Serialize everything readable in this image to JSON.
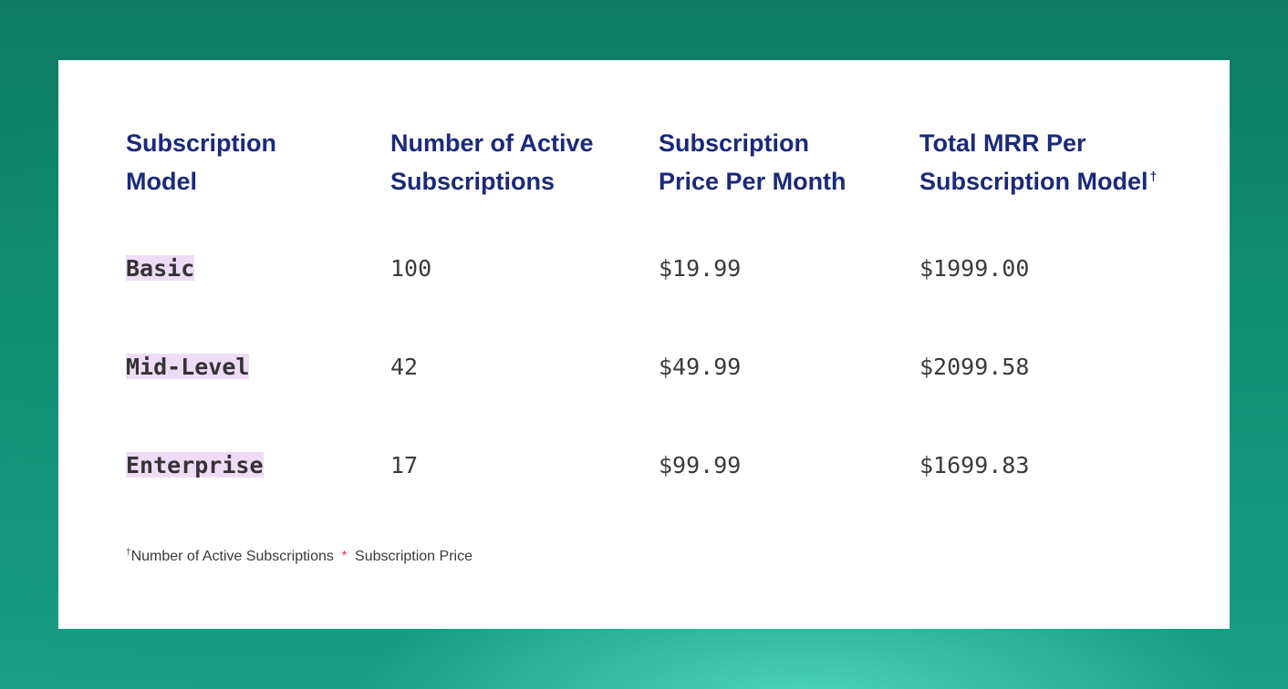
{
  "table": {
    "headers": [
      {
        "lines": [
          "Subscription",
          "Model"
        ],
        "marker": ""
      },
      {
        "lines": [
          "Number of Active",
          "Subscriptions"
        ],
        "marker": ""
      },
      {
        "lines": [
          "Subscription",
          "Price Per Month"
        ],
        "marker": ""
      },
      {
        "lines": [
          "Total MRR Per",
          "Subscription Model"
        ],
        "marker": "†"
      }
    ],
    "rows": [
      {
        "model": "Basic",
        "active": "100",
        "price": "$19.99",
        "total": "$1999.00"
      },
      {
        "model": "Mid-Level",
        "active": "42",
        "price": "$49.99",
        "total": "$2099.58"
      },
      {
        "model": "Enterprise",
        "active": "17",
        "price": "$99.99",
        "total": "$1699.83"
      }
    ]
  },
  "footnote": {
    "marker": "†",
    "left_term": "Number of Active Subscriptions",
    "operator": "*",
    "right_term": "Subscription Price"
  },
  "colors": {
    "header_text": "#1a2a7a",
    "highlight": "#eedcf7",
    "operator": "#e0457a",
    "background": "#0f8f74"
  }
}
